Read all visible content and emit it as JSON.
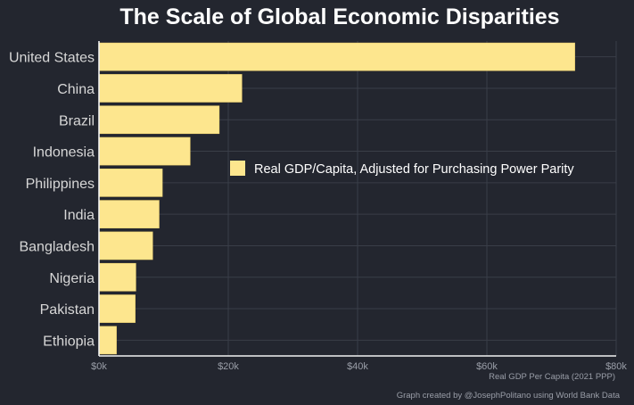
{
  "colors": {
    "background": "#23262f",
    "bar": "#fde68e",
    "grid": "#3a3e48",
    "axis": "#f2f2f2",
    "label": "#d7d7d7",
    "tick": "#9a9ea8",
    "title": "#ffffff"
  },
  "chart_data": {
    "type": "bar",
    "orientation": "horizontal",
    "title": "The Scale of Global Economic Disparities",
    "xlabel": "Real GDP Per Capita (2021 PPP)",
    "ylabel": "",
    "categories": [
      "United States",
      "China",
      "Brazil",
      "Indonesia",
      "Philippines",
      "India",
      "Bangladesh",
      "Nigeria",
      "Pakistan",
      "Ethiopia"
    ],
    "series": [
      {
        "name": "Real GDP/Capita, Adjusted for Purchasing Power Parity",
        "values": [
          73600,
          22100,
          18600,
          14100,
          9800,
          9300,
          8300,
          5700,
          5600,
          2700
        ]
      }
    ],
    "xlim": [
      0,
      80000
    ],
    "x_ticks": [
      0,
      20000,
      40000,
      60000,
      80000
    ],
    "x_tick_labels": [
      "$0k",
      "$20k",
      "$40k",
      "$60k",
      "$80k"
    ],
    "grid": true,
    "legend_position": "center-right"
  },
  "credit": "Graph created by @JosephPolitano using World Bank Data"
}
